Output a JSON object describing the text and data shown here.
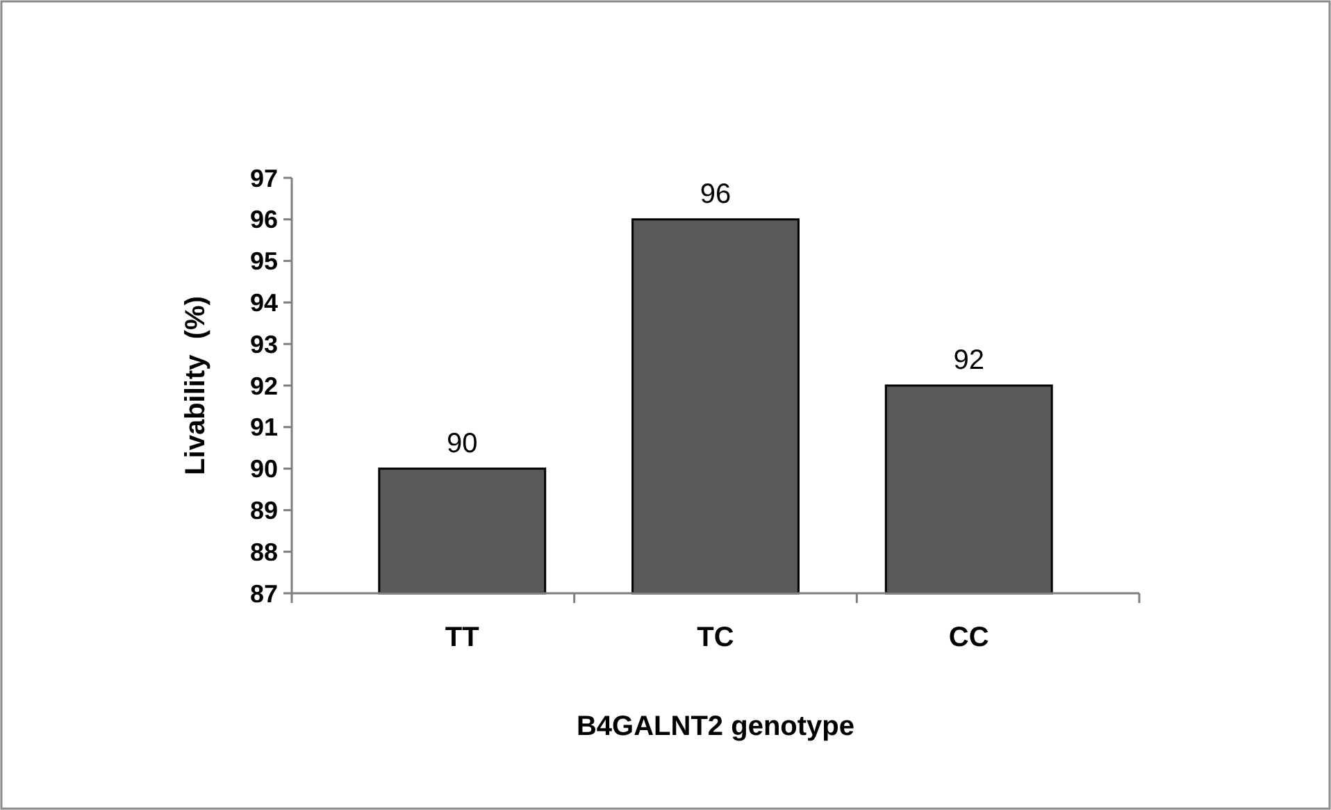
{
  "chart_data": {
    "type": "bar",
    "xlabel": "B4GALNT2 genotype",
    "ylabel": "Livability  (%)",
    "categories": [
      "TT",
      "TC",
      "CC"
    ],
    "values": [
      90,
      96,
      92
    ],
    "color": "#595959",
    "ylim": [
      87,
      97
    ],
    "yticks": [
      87,
      88,
      89,
      90,
      91,
      92,
      93,
      94,
      95,
      96,
      97
    ],
    "grid": false,
    "data_labels": true
  }
}
